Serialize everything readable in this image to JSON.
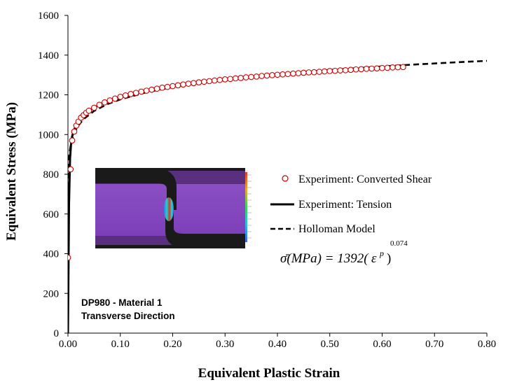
{
  "chart_data": {
    "type": "scatter",
    "xlabel": "Equivalent Plastic Strain",
    "ylabel": "Equivalent Stress (MPa)",
    "xlim": [
      0,
      0.8
    ],
    "ylim": [
      0,
      1600
    ],
    "x_ticks": [
      "0.00",
      "0.10",
      "0.20",
      "0.30",
      "0.40",
      "0.50",
      "0.60",
      "0.70",
      "0.80"
    ],
    "y_ticks": [
      "0",
      "200",
      "400",
      "600",
      "800",
      "1000",
      "1200",
      "1400",
      "1600"
    ],
    "grid": false,
    "legend_position": "center-right",
    "legend": {
      "shear": "Experiment: Converted Shear",
      "tension": "Experiment: Tension",
      "model": "Holloman Model"
    },
    "annotation_lines": [
      "DP980 - Material 1",
      "Transverse Direction"
    ],
    "equation": {
      "lhs": "σ̄(MPa) = 1392(",
      "eps": "ε",
      "sup": "p",
      "rparen": ")",
      "exponent": "0.074"
    },
    "holloman_model": {
      "K": 1392,
      "n": 0.074
    },
    "series": [
      {
        "name": "Experiment: Converted Shear",
        "style": "circle-markers",
        "color": "#cc0000",
        "x": [
          0.0,
          0.005,
          0.008,
          0.012,
          0.016,
          0.02,
          0.025,
          0.03,
          0.035,
          0.04,
          0.05,
          0.06,
          0.07,
          0.08,
          0.09,
          0.1,
          0.11,
          0.12,
          0.13,
          0.14,
          0.15,
          0.16,
          0.17,
          0.18,
          0.19,
          0.2,
          0.21,
          0.22,
          0.23,
          0.24,
          0.25,
          0.26,
          0.27,
          0.28,
          0.29,
          0.3,
          0.31,
          0.32,
          0.33,
          0.34,
          0.35,
          0.36,
          0.37,
          0.38,
          0.39,
          0.4,
          0.41,
          0.42,
          0.43,
          0.44,
          0.45,
          0.46,
          0.47,
          0.48,
          0.49,
          0.5,
          0.51,
          0.52,
          0.53,
          0.54,
          0.55,
          0.56,
          0.57,
          0.58,
          0.59,
          0.6,
          0.61,
          0.62,
          0.63,
          0.64
        ],
        "y": [
          380,
          825,
          970,
          1015,
          1045,
          1065,
          1085,
          1098,
          1110,
          1120,
          1135,
          1150,
          1162,
          1172,
          1181,
          1190,
          1197,
          1204,
          1210,
          1216,
          1221,
          1226,
          1231,
          1236,
          1240,
          1244,
          1248,
          1252,
          1256,
          1259,
          1263,
          1266,
          1269,
          1272,
          1275,
          1278,
          1280,
          1283,
          1285,
          1288,
          1290,
          1292,
          1295,
          1297,
          1299,
          1301,
          1303,
          1305,
          1307,
          1309,
          1311,
          1313,
          1314,
          1316,
          1318,
          1320,
          1321,
          1323,
          1324,
          1326,
          1328,
          1329,
          1331,
          1332,
          1333,
          1335,
          1336,
          1338,
          1339,
          1340
        ]
      },
      {
        "name": "Experiment: Tension",
        "style": "solid-line",
        "color": "#000000",
        "x": [
          0.0,
          0.002,
          0.004,
          0.006,
          0.008,
          0.01,
          0.015,
          0.02,
          0.03,
          0.04,
          0.05,
          0.06,
          0.07,
          0.08,
          0.09,
          0.1
        ],
        "y": [
          0,
          650,
          880,
          955,
          990,
          1010,
          1045,
          1065,
          1098,
          1120,
          1135,
          1150,
          1162,
          1172,
          1181,
          1190
        ]
      },
      {
        "name": "Holloman Model",
        "style": "dashed-line",
        "color": "#000000",
        "x": [
          0.0,
          0.0005,
          0.001,
          0.002,
          0.003,
          0.005,
          0.0075,
          0.01,
          0.015,
          0.02,
          0.03,
          0.05,
          0.075,
          0.1,
          0.15,
          0.2,
          0.25,
          0.3,
          0.35,
          0.4,
          0.45,
          0.5,
          0.55,
          0.6,
          0.65,
          0.7,
          0.75,
          0.8
        ],
        "y": [
          0,
          794,
          836,
          880,
          907,
          942,
          971,
          993,
          1023,
          1046,
          1078,
          1119,
          1153,
          1177,
          1213,
          1239,
          1260,
          1277,
          1291,
          1304,
          1315,
          1325,
          1334,
          1343,
          1351,
          1358,
          1365,
          1371
        ]
      }
    ]
  }
}
